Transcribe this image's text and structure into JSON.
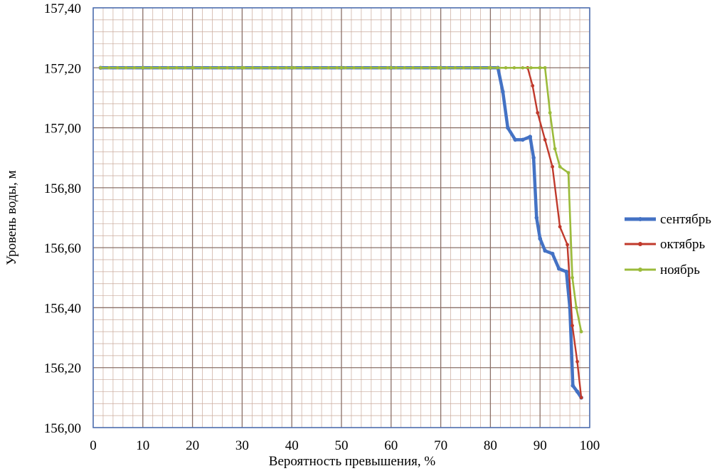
{
  "chart_data": {
    "type": "line",
    "title": "",
    "xlabel": "Вероятность превышения, %",
    "ylabel": "Уровень воды, м",
    "xlim": [
      0,
      100
    ],
    "ylim": [
      156.0,
      157.4
    ],
    "x_ticks": [
      "0",
      "10",
      "20",
      "30",
      "40",
      "50",
      "60",
      "70",
      "80",
      "90",
      "100"
    ],
    "y_ticks": [
      "156,00",
      "156,20",
      "156,40",
      "156,60",
      "156,80",
      "157,00",
      "157,20",
      "157,40"
    ],
    "grid": true,
    "legend_position": "right",
    "series": [
      {
        "name": "сентябрь",
        "color": "#4472c4",
        "points": [
          [
            1.5,
            157.2
          ],
          [
            10,
            157.2
          ],
          [
            20,
            157.2
          ],
          [
            30,
            157.2
          ],
          [
            40,
            157.2
          ],
          [
            50,
            157.2
          ],
          [
            60,
            157.2
          ],
          [
            70,
            157.2
          ],
          [
            80,
            157.2
          ],
          [
            81.5,
            157.2
          ],
          [
            82.5,
            157.12
          ],
          [
            83.5,
            157.0
          ],
          [
            85,
            156.96
          ],
          [
            86.5,
            156.96
          ],
          [
            88,
            156.97
          ],
          [
            88.7,
            156.9
          ],
          [
            89.3,
            156.7
          ],
          [
            90,
            156.63
          ],
          [
            91,
            156.59
          ],
          [
            92.5,
            156.58
          ],
          [
            93.8,
            156.53
          ],
          [
            95.3,
            156.52
          ],
          [
            96,
            156.4
          ],
          [
            96.6,
            156.14
          ],
          [
            97.5,
            156.12
          ],
          [
            98.3,
            156.1
          ]
        ]
      },
      {
        "name": "октябрь",
        "color": "#c0392b",
        "points": [
          [
            1.5,
            157.2
          ],
          [
            10,
            157.2
          ],
          [
            20,
            157.2
          ],
          [
            30,
            157.2
          ],
          [
            40,
            157.2
          ],
          [
            50,
            157.2
          ],
          [
            60,
            157.2
          ],
          [
            70,
            157.2
          ],
          [
            80,
            157.2
          ],
          [
            87.5,
            157.2
          ],
          [
            88.5,
            157.14
          ],
          [
            89.5,
            157.05
          ],
          [
            91,
            156.96
          ],
          [
            92.5,
            156.87
          ],
          [
            94,
            156.67
          ],
          [
            95.5,
            156.61
          ],
          [
            96.5,
            156.34
          ],
          [
            97.5,
            156.22
          ],
          [
            98.3,
            156.1
          ]
        ]
      },
      {
        "name": "ноябрь",
        "color": "#9bbb3b",
        "points": [
          [
            1.5,
            157.2
          ],
          [
            10,
            157.2
          ],
          [
            20,
            157.2
          ],
          [
            30,
            157.2
          ],
          [
            40,
            157.2
          ],
          [
            50,
            157.2
          ],
          [
            60,
            157.2
          ],
          [
            70,
            157.2
          ],
          [
            80,
            157.2
          ],
          [
            90,
            157.2
          ],
          [
            91,
            157.2
          ],
          [
            92,
            157.05
          ],
          [
            93,
            156.93
          ],
          [
            94,
            156.87
          ],
          [
            95.7,
            156.85
          ],
          [
            96.5,
            156.5
          ],
          [
            97.3,
            156.4
          ],
          [
            98.3,
            156.32
          ]
        ]
      }
    ]
  }
}
